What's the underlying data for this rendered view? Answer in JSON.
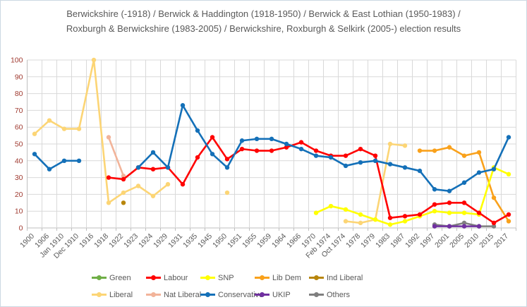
{
  "title": "Berwickshire (-1918) / Berwick & Haddington (1918-1950) / Berwick & East Lothian (1950-1983) / Roxburgh & Berwickshire (1983-2005) / Berwickshire, Roxburgh & Selkirk (2005-) election results",
  "chart_data": {
    "type": "line",
    "title": "Berwickshire (-1918) / Berwick & Haddington (1918-1950) / Berwick & East Lothian (1950-1983) / Roxburgh & Berwickshire (1983-2005) / Berwickshire, Roxburgh & Selkirk (2005-) election results",
    "xlabel": "",
    "ylabel": "",
    "ylim": [
      0,
      100
    ],
    "y_tick_interval": 10,
    "y_ticks": [
      0,
      10,
      20,
      30,
      40,
      50,
      60,
      70,
      80,
      90,
      100
    ],
    "grid": true,
    "legend_position": "bottom",
    "colors": {
      "gridline": "#d9d9d9",
      "axis_line": "#bfbfbf",
      "y_tick_label": "#a03c32",
      "x_tick_label": "#595959",
      "title_text": "#595959",
      "legend_text": "#595959"
    },
    "categories": [
      "1900",
      "1906",
      "Jan 1910",
      "Dec 1910",
      "1916",
      "1918",
      "1922",
      "1923",
      "1924",
      "1929",
      "1931",
      "1935",
      "1945",
      "1950",
      "1951",
      "1955",
      "1959",
      "1964",
      "1966",
      "1970",
      "Feb 1974",
      "Oct 1974",
      "1978",
      "1979",
      "1983",
      "1987",
      "1992",
      "1997",
      "2001",
      "2005",
      "2010",
      "2015",
      "2017"
    ],
    "series": [
      {
        "name": "Green",
        "color": "#6fae46",
        "values": [
          null,
          null,
          null,
          null,
          null,
          null,
          null,
          null,
          null,
          null,
          null,
          null,
          null,
          null,
          null,
          null,
          null,
          null,
          null,
          null,
          null,
          null,
          null,
          null,
          null,
          null,
          null,
          null,
          null,
          null,
          null,
          null,
          null
        ]
      },
      {
        "name": "Labour",
        "color": "#ff0000",
        "values": [
          null,
          null,
          null,
          null,
          null,
          30,
          29,
          36,
          35,
          36,
          26,
          42,
          54,
          41,
          47,
          46,
          46,
          48,
          51,
          46,
          43,
          43,
          47,
          43,
          6,
          7,
          8,
          14,
          15,
          15,
          9,
          3,
          8
        ]
      },
      {
        "name": "SNP",
        "color": "#ffff00",
        "values": [
          null,
          null,
          null,
          null,
          null,
          null,
          null,
          null,
          null,
          null,
          null,
          null,
          null,
          null,
          null,
          null,
          null,
          null,
          null,
          9,
          13,
          11,
          8,
          5,
          2,
          4,
          7,
          10,
          9,
          9,
          8,
          36,
          32
        ]
      },
      {
        "name": "Lib Dem",
        "color": "#f9a11b",
        "values": [
          null,
          null,
          null,
          null,
          null,
          null,
          null,
          null,
          null,
          null,
          null,
          null,
          null,
          null,
          null,
          null,
          null,
          null,
          null,
          null,
          null,
          null,
          null,
          null,
          null,
          null,
          46,
          46,
          48,
          43,
          45,
          18,
          4
        ]
      },
      {
        "name": "Ind Liberal",
        "color": "#b8860b",
        "values": [
          null,
          null,
          null,
          null,
          null,
          null,
          15,
          null,
          null,
          null,
          null,
          null,
          null,
          null,
          null,
          null,
          null,
          null,
          null,
          null,
          null,
          null,
          null,
          null,
          null,
          null,
          null,
          null,
          null,
          null,
          null,
          null,
          null
        ]
      },
      {
        "name": "Liberal",
        "color": "#fcd575",
        "values": [
          56,
          64,
          59,
          59,
          100,
          15,
          21,
          25,
          19,
          26,
          null,
          null,
          null,
          21,
          null,
          null,
          null,
          null,
          null,
          null,
          null,
          4,
          3,
          5,
          50,
          49,
          null,
          null,
          null,
          null,
          null,
          null,
          null
        ]
      },
      {
        "name": "Nat Liberal",
        "color": "#f2b49a",
        "values": [
          null,
          null,
          null,
          null,
          null,
          54,
          31,
          null,
          null,
          null,
          null,
          null,
          null,
          null,
          null,
          null,
          null,
          null,
          null,
          null,
          null,
          null,
          null,
          null,
          null,
          null,
          null,
          null,
          null,
          null,
          null,
          null,
          null
        ]
      },
      {
        "name": "Conservative",
        "color": "#1470b8",
        "values": [
          44,
          35,
          40,
          40,
          null,
          null,
          null,
          36,
          45,
          36,
          73,
          58,
          44,
          36,
          52,
          53,
          53,
          50,
          47,
          43,
          42,
          37,
          39,
          40,
          38,
          36,
          34,
          23,
          22,
          27,
          33,
          35,
          54
        ]
      },
      {
        "name": "UKIP",
        "color": "#7030a0",
        "values": [
          null,
          null,
          null,
          null,
          null,
          null,
          null,
          null,
          null,
          null,
          null,
          null,
          null,
          null,
          null,
          null,
          null,
          null,
          null,
          null,
          null,
          null,
          null,
          null,
          null,
          null,
          null,
          1,
          1,
          1,
          1,
          null,
          null
        ]
      },
      {
        "name": "Others",
        "color": "#7f7f7f",
        "values": [
          null,
          null,
          null,
          null,
          null,
          null,
          null,
          null,
          null,
          null,
          null,
          null,
          null,
          null,
          null,
          null,
          null,
          null,
          null,
          null,
          null,
          null,
          null,
          null,
          null,
          null,
          null,
          2,
          1,
          3,
          1,
          1,
          null
        ]
      }
    ]
  }
}
